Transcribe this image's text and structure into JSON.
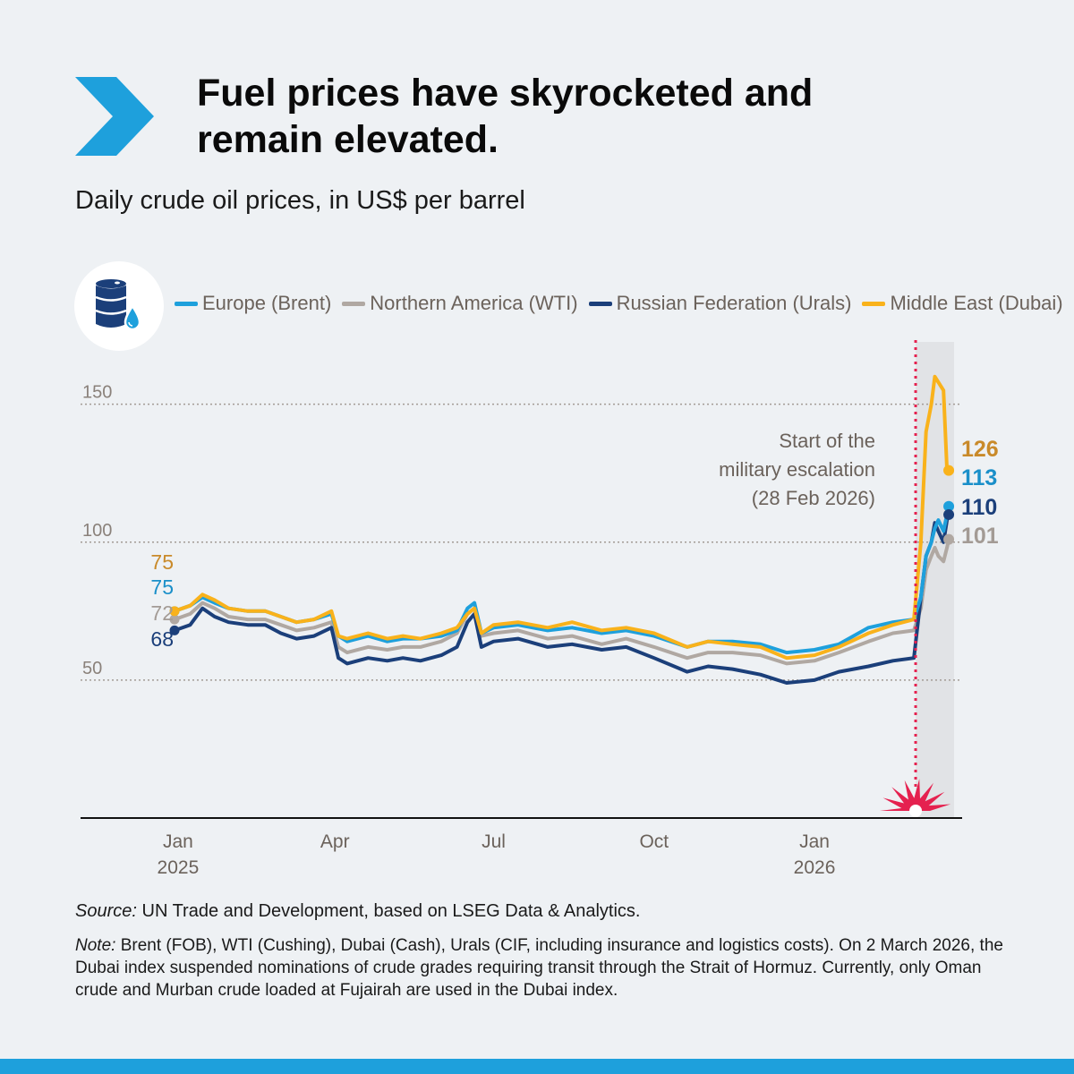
{
  "header": {
    "title_line1": "Fuel prices have skyrocketed and",
    "title_line2": "remain elevated.",
    "subtitle": "Daily crude oil prices, in US$ per barrel"
  },
  "icons": {
    "brand": "chevron-right-icon",
    "badge": "oil-barrel-icon"
  },
  "colors": {
    "background": "#eef1f4",
    "brent": "#1ea0dc",
    "wti": "#b0a8a2",
    "urals": "#1b3f7a",
    "dubai": "#f9b21b",
    "escalation": "#e5214f",
    "accent": "#1ea0dc"
  },
  "legend": [
    {
      "key": "brent",
      "label": "Europe (Brent)"
    },
    {
      "key": "wti",
      "label": "Northern America (WTI)"
    },
    {
      "key": "urals",
      "label": "Russian Federation (Urals)"
    },
    {
      "key": "dubai",
      "label": "Middle East (Dubai)"
    }
  ],
  "chart_data": {
    "type": "line",
    "title": "Daily crude oil prices, in US$ per barrel",
    "x_range": [
      "2024-12-30",
      "2026-03-20"
    ],
    "ylim": [
      0,
      170
    ],
    "y_ticks": [
      50,
      100,
      150
    ],
    "y_tick_labels": [
      "50",
      "100",
      "150"
    ],
    "grid": "dotted horizontal at ticks",
    "x_ticks": [
      {
        "date": "2025-01-01",
        "label": "Jan",
        "sublabel": "2025"
      },
      {
        "date": "2025-04-01",
        "label": "Apr",
        "sublabel": ""
      },
      {
        "date": "2025-07-01",
        "label": "Jul",
        "sublabel": ""
      },
      {
        "date": "2025-10-01",
        "label": "Oct",
        "sublabel": ""
      },
      {
        "date": "2026-01-01",
        "label": "Jan",
        "sublabel": "2026"
      }
    ],
    "x_dates": [
      "2024-12-30",
      "2025-01-08",
      "2025-01-15",
      "2025-01-22",
      "2025-01-30",
      "2025-02-10",
      "2025-02-20",
      "2025-03-01",
      "2025-03-10",
      "2025-03-20",
      "2025-03-30",
      "2025-04-03",
      "2025-04-08",
      "2025-04-20",
      "2025-05-01",
      "2025-05-10",
      "2025-05-20",
      "2025-06-01",
      "2025-06-10",
      "2025-06-16",
      "2025-06-20",
      "2025-06-24",
      "2025-07-01",
      "2025-07-15",
      "2025-08-01",
      "2025-08-15",
      "2025-09-01",
      "2025-09-15",
      "2025-10-01",
      "2025-10-20",
      "2025-11-01",
      "2025-11-15",
      "2025-12-01",
      "2025-12-16",
      "2026-01-01",
      "2026-01-15",
      "2026-02-01",
      "2026-02-15",
      "2026-02-27",
      "2026-03-03",
      "2026-03-06",
      "2026-03-09",
      "2026-03-11",
      "2026-03-13",
      "2026-03-16",
      "2026-03-18",
      "2026-03-19"
    ],
    "series": [
      {
        "key": "brent",
        "name": "Europe (Brent)",
        "values": [
          75,
          77,
          80,
          78,
          76,
          75,
          75,
          73,
          71,
          72,
          74,
          66,
          64,
          66,
          64,
          65,
          65,
          66,
          68,
          76,
          78,
          67,
          69,
          70,
          68,
          69,
          67,
          68,
          66,
          62,
          64,
          64,
          63,
          60,
          61,
          63,
          69,
          71,
          72,
          80,
          95,
          100,
          105,
          108,
          104,
          110,
          113
        ]
      },
      {
        "key": "wti",
        "name": "Northern America (WTI)",
        "values": [
          72,
          74,
          78,
          76,
          73,
          72,
          72,
          70,
          68,
          69,
          71,
          62,
          60,
          62,
          61,
          62,
          62,
          64,
          67,
          74,
          76,
          66,
          67,
          68,
          65,
          66,
          63,
          65,
          62,
          58,
          60,
          60,
          59,
          56,
          57,
          60,
          64,
          67,
          68,
          76,
          90,
          95,
          98,
          95,
          93,
          98,
          101
        ]
      },
      {
        "key": "urals",
        "name": "Russian Federation (Urals)",
        "values": [
          68,
          70,
          76,
          73,
          71,
          70,
          70,
          67,
          65,
          66,
          69,
          58,
          56,
          58,
          57,
          58,
          57,
          59,
          62,
          71,
          74,
          62,
          64,
          65,
          62,
          63,
          61,
          62,
          58,
          53,
          55,
          54,
          52,
          49,
          50,
          53,
          55,
          57,
          58,
          80,
          95,
          100,
          107,
          104,
          100,
          108,
          110
        ]
      },
      {
        "key": "dubai",
        "name": "Middle East (Dubai)",
        "values": [
          75,
          77,
          81,
          79,
          76,
          75,
          75,
          73,
          71,
          72,
          75,
          66,
          65,
          67,
          65,
          66,
          65,
          67,
          69,
          74,
          76,
          67,
          70,
          71,
          69,
          71,
          68,
          69,
          67,
          62,
          64,
          63,
          62,
          58,
          59,
          62,
          67,
          70,
          72,
          100,
          140,
          150,
          160,
          158,
          155,
          126,
          126
        ]
      }
    ],
    "start_labels": [
      {
        "key": "dubai",
        "text": "75"
      },
      {
        "key": "brent",
        "text": "75"
      },
      {
        "key": "wti",
        "text": "72"
      },
      {
        "key": "urals",
        "text": "68"
      }
    ],
    "end_labels": [
      {
        "key": "dubai",
        "text": "126"
      },
      {
        "key": "brent",
        "text": "113"
      },
      {
        "key": "urals",
        "text": "110"
      },
      {
        "key": "wti",
        "text": "101"
      }
    ],
    "annotation": {
      "date": "2026-02-28",
      "line1": "Start of the",
      "line2": "military escalation",
      "line3": "(28 Feb 2026)",
      "shaded_from": "2026-02-28"
    }
  },
  "footer": {
    "source_label": "Source:",
    "source_text": " UN Trade and Development, based on LSEG Data & Analytics.",
    "note_label": "Note:",
    "note_text": " Brent (FOB), WTI (Cushing), Dubai (Cash), Urals (CIF, including insurance and logistics costs). On 2 March 2026, the Dubai index suspended nominations of crude grades requiring transit through the Strait of Hormuz. Currently, only Oman crude and Murban crude loaded at Fujairah are used in the Dubai index."
  }
}
